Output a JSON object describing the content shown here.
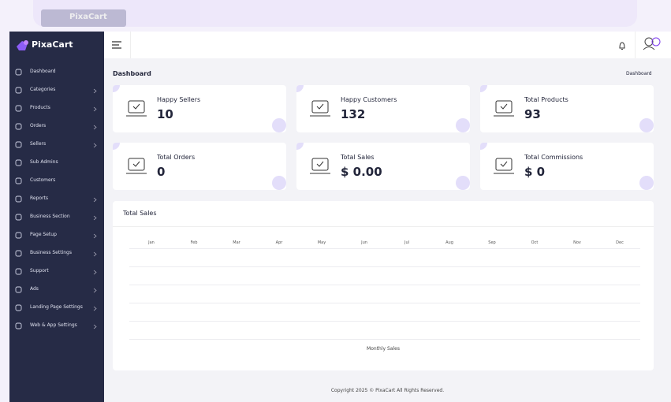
{
  "back_card": {
    "brand": "PixaCart"
  },
  "sidebar": {
    "brand": "PixaCart",
    "items": [
      {
        "label": "Dashboard",
        "has_children": false
      },
      {
        "label": "Categories",
        "has_children": true
      },
      {
        "label": "Products",
        "has_children": true
      },
      {
        "label": "Orders",
        "has_children": true
      },
      {
        "label": "Sellers",
        "has_children": true
      },
      {
        "label": "Sub Admins",
        "has_children": false
      },
      {
        "label": "Customers",
        "has_children": false
      },
      {
        "label": "Reports",
        "has_children": true
      },
      {
        "label": "Business Section",
        "has_children": true
      },
      {
        "label": "Page Setup",
        "has_children": true
      },
      {
        "label": "Business Settings",
        "has_children": true
      },
      {
        "label": "Support",
        "has_children": true
      },
      {
        "label": "Ads",
        "has_children": true
      },
      {
        "label": "Landing Page Settings",
        "has_children": true
      },
      {
        "label": "Web & App Settings",
        "has_children": true
      }
    ]
  },
  "page": {
    "title": "Dashboard",
    "breadcrumb": "Dashboard"
  },
  "cards": [
    {
      "title": "Happy Sellers",
      "value": "10"
    },
    {
      "title": "Happy Customers",
      "value": "132"
    },
    {
      "title": "Total Products",
      "value": "93"
    },
    {
      "title": "Total Orders",
      "value": "0"
    },
    {
      "title": "Total Sales",
      "value": "$ 0.00"
    },
    {
      "title": "Total Commissions",
      "value": "$ 0"
    }
  ],
  "sales_chart": {
    "title": "Total Sales",
    "months": [
      "Jan",
      "Feb",
      "Mar",
      "Apr",
      "May",
      "Jun",
      "Jul",
      "Aug",
      "Sep",
      "Oct",
      "Nov",
      "Dec"
    ],
    "legend": "Monthly Sales"
  },
  "footer": {
    "copyright": "Copyright 2025 © PixaCart All Rights Reserved."
  }
}
